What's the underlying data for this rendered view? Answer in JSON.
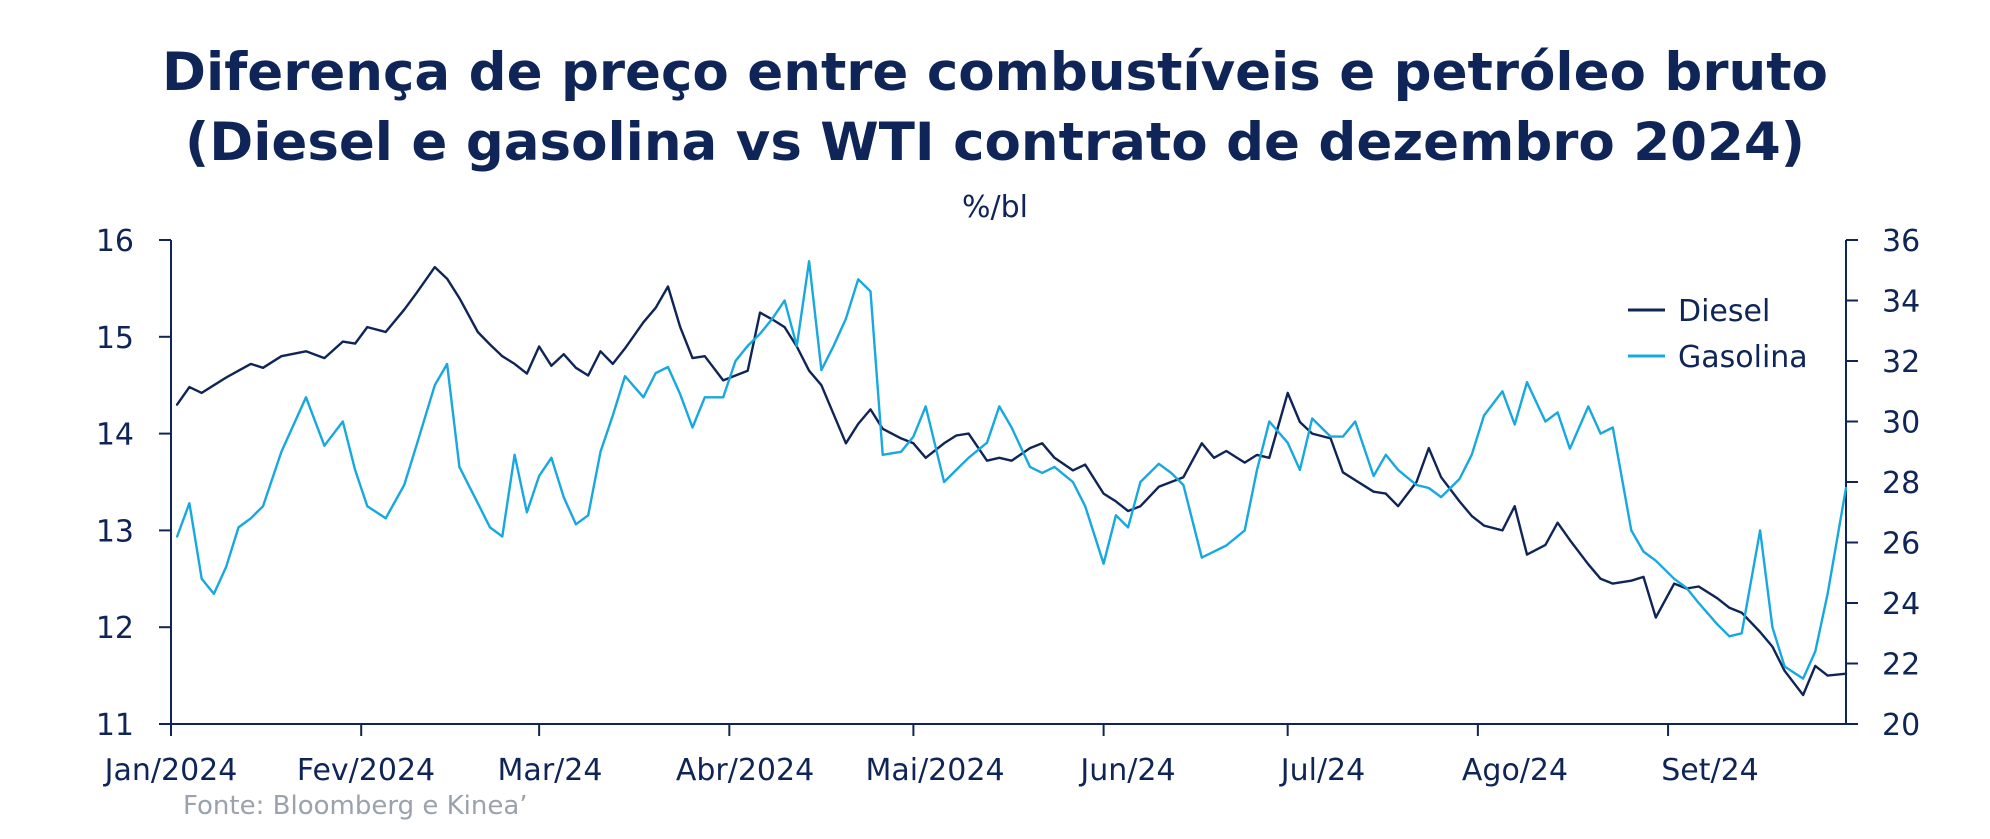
{
  "title_line1": "Diferença de preço entre combustíveis e petróleo bruto",
  "title_line2": "(Diesel e gasolina vs WTI contrato de dezembro 2024)",
  "unit": "%/bl",
  "source": "Fonte: Bloomberg e Kinea’",
  "chart_data": {
    "type": "line",
    "x_tick_labels": [
      "Jan/2024",
      "Fev/2024",
      "Mar/24",
      "Abr/2024",
      "Mai/2024",
      "Jun/24",
      "Jul/24",
      "Ago/24",
      "Set/24"
    ],
    "x_range": [
      "2024-01-01",
      "2024-09-30"
    ],
    "y_left": {
      "range": [
        11,
        16
      ],
      "ticks": [
        11,
        12,
        13,
        14,
        15,
        16
      ]
    },
    "y_right": {
      "range": [
        20,
        36
      ],
      "ticks": [
        20,
        22,
        24,
        26,
        28,
        30,
        32,
        34,
        36
      ]
    },
    "legend_position": "top-right",
    "grid": false,
    "series": [
      {
        "name": "Diesel",
        "axis": "left",
        "color": "#0f2557",
        "x": [
          "2024-01-02",
          "2024-01-04",
          "2024-01-06",
          "2024-01-08",
          "2024-01-10",
          "2024-01-12",
          "2024-01-14",
          "2024-01-16",
          "2024-01-19",
          "2024-01-23",
          "2024-01-26",
          "2024-01-29",
          "2024-01-31",
          "2024-02-02",
          "2024-02-05",
          "2024-02-08",
          "2024-02-10",
          "2024-02-13",
          "2024-02-15",
          "2024-02-17",
          "2024-02-20",
          "2024-02-22",
          "2024-02-24",
          "2024-02-26",
          "2024-02-28",
          "2024-03-01",
          "2024-03-03",
          "2024-03-05",
          "2024-03-07",
          "2024-03-09",
          "2024-03-11",
          "2024-03-13",
          "2024-03-15",
          "2024-03-18",
          "2024-03-20",
          "2024-03-22",
          "2024-03-24",
          "2024-03-26",
          "2024-03-28",
          "2024-03-31",
          "2024-04-02",
          "2024-04-04",
          "2024-04-06",
          "2024-04-08",
          "2024-04-10",
          "2024-04-12",
          "2024-04-14",
          "2024-04-16",
          "2024-04-18",
          "2024-04-20",
          "2024-04-22",
          "2024-04-24",
          "2024-04-26",
          "2024-04-29",
          "2024-05-01",
          "2024-05-03",
          "2024-05-06",
          "2024-05-08",
          "2024-05-10",
          "2024-05-13",
          "2024-05-15",
          "2024-05-17",
          "2024-05-20",
          "2024-05-22",
          "2024-05-24",
          "2024-05-27",
          "2024-05-29",
          "2024-06-01",
          "2024-06-03",
          "2024-06-05",
          "2024-06-07",
          "2024-06-10",
          "2024-06-12",
          "2024-06-14",
          "2024-06-17",
          "2024-06-19",
          "2024-06-21",
          "2024-06-24",
          "2024-06-26",
          "2024-06-28",
          "2024-07-01",
          "2024-07-03",
          "2024-07-05",
          "2024-07-08",
          "2024-07-10",
          "2024-07-12",
          "2024-07-15",
          "2024-07-17",
          "2024-07-19",
          "2024-07-22",
          "2024-07-24",
          "2024-07-26",
          "2024-07-29",
          "2024-07-31",
          "2024-08-02",
          "2024-08-05",
          "2024-08-07",
          "2024-08-09",
          "2024-08-12",
          "2024-08-14",
          "2024-08-16",
          "2024-08-19",
          "2024-08-21",
          "2024-08-23",
          "2024-08-26",
          "2024-08-28",
          "2024-08-30",
          "2024-09-02",
          "2024-09-04",
          "2024-09-06",
          "2024-09-09",
          "2024-09-11",
          "2024-09-13",
          "2024-09-16",
          "2024-09-18",
          "2024-09-20",
          "2024-09-23",
          "2024-09-25",
          "2024-09-27",
          "2024-09-30"
        ],
        "y": [
          14.3,
          14.48,
          14.42,
          14.5,
          14.58,
          14.65,
          14.72,
          14.68,
          14.8,
          14.85,
          14.78,
          14.95,
          14.93,
          15.1,
          15.05,
          15.28,
          15.45,
          15.72,
          15.6,
          15.4,
          15.05,
          14.92,
          14.8,
          14.72,
          14.62,
          14.9,
          14.7,
          14.82,
          14.68,
          14.6,
          14.85,
          14.72,
          14.88,
          15.15,
          15.3,
          15.52,
          15.1,
          14.78,
          14.8,
          14.55,
          14.6,
          14.65,
          15.25,
          15.18,
          15.1,
          14.9,
          14.65,
          14.5,
          14.2,
          13.9,
          14.1,
          14.25,
          14.05,
          13.95,
          13.9,
          13.75,
          13.9,
          13.98,
          14.0,
          13.72,
          13.75,
          13.72,
          13.85,
          13.9,
          13.75,
          13.62,
          13.68,
          13.38,
          13.3,
          13.2,
          13.25,
          13.45,
          13.5,
          13.55,
          13.9,
          13.75,
          13.82,
          13.7,
          13.78,
          13.75,
          14.42,
          14.12,
          14.0,
          13.95,
          13.6,
          13.52,
          13.4,
          13.38,
          13.25,
          13.5,
          13.85,
          13.55,
          13.3,
          13.15,
          13.05,
          13.0,
          13.25,
          12.75,
          12.85,
          13.08,
          12.9,
          12.65,
          12.5,
          12.45,
          12.48,
          12.52,
          12.1,
          12.45,
          12.4,
          12.42,
          12.3,
          12.2,
          12.15,
          11.95,
          11.8,
          11.55,
          11.3,
          11.6,
          11.5,
          11.52
        ]
      },
      {
        "name": "Gasolina",
        "axis": "right",
        "color": "#18a8e0",
        "x": [
          "2024-01-02",
          "2024-01-04",
          "2024-01-06",
          "2024-01-08",
          "2024-01-10",
          "2024-01-12",
          "2024-01-14",
          "2024-01-16",
          "2024-01-19",
          "2024-01-23",
          "2024-01-26",
          "2024-01-29",
          "2024-01-31",
          "2024-02-02",
          "2024-02-05",
          "2024-02-08",
          "2024-02-10",
          "2024-02-13",
          "2024-02-15",
          "2024-02-17",
          "2024-02-20",
          "2024-02-22",
          "2024-02-24",
          "2024-02-26",
          "2024-02-28",
          "2024-03-01",
          "2024-03-03",
          "2024-03-05",
          "2024-03-07",
          "2024-03-09",
          "2024-03-11",
          "2024-03-13",
          "2024-03-15",
          "2024-03-18",
          "2024-03-20",
          "2024-03-22",
          "2024-03-24",
          "2024-03-26",
          "2024-03-28",
          "2024-03-31",
          "2024-04-02",
          "2024-04-04",
          "2024-04-06",
          "2024-04-08",
          "2024-04-10",
          "2024-04-12",
          "2024-04-14",
          "2024-04-16",
          "2024-04-18",
          "2024-04-20",
          "2024-04-22",
          "2024-04-24",
          "2024-04-26",
          "2024-04-29",
          "2024-05-01",
          "2024-05-03",
          "2024-05-06",
          "2024-05-08",
          "2024-05-10",
          "2024-05-13",
          "2024-05-15",
          "2024-05-17",
          "2024-05-20",
          "2024-05-22",
          "2024-05-24",
          "2024-05-27",
          "2024-05-29",
          "2024-06-01",
          "2024-06-03",
          "2024-06-05",
          "2024-06-07",
          "2024-06-10",
          "2024-06-12",
          "2024-06-14",
          "2024-06-17",
          "2024-06-19",
          "2024-06-21",
          "2024-06-24",
          "2024-06-26",
          "2024-06-28",
          "2024-07-01",
          "2024-07-03",
          "2024-07-05",
          "2024-07-08",
          "2024-07-10",
          "2024-07-12",
          "2024-07-15",
          "2024-07-17",
          "2024-07-19",
          "2024-07-22",
          "2024-07-24",
          "2024-07-26",
          "2024-07-29",
          "2024-07-31",
          "2024-08-02",
          "2024-08-05",
          "2024-08-07",
          "2024-08-09",
          "2024-08-12",
          "2024-08-14",
          "2024-08-16",
          "2024-08-19",
          "2024-08-21",
          "2024-08-23",
          "2024-08-26",
          "2024-08-28",
          "2024-08-30",
          "2024-09-02",
          "2024-09-04",
          "2024-09-06",
          "2024-09-09",
          "2024-09-11",
          "2024-09-13",
          "2024-09-16",
          "2024-09-18",
          "2024-09-20",
          "2024-09-23",
          "2024-09-25",
          "2024-09-27",
          "2024-09-30"
        ],
        "y": [
          26.2,
          27.3,
          24.8,
          24.3,
          25.2,
          26.5,
          26.8,
          27.2,
          29.0,
          30.8,
          29.2,
          30.0,
          28.4,
          27.2,
          26.8,
          27.9,
          29.2,
          31.2,
          31.9,
          28.5,
          27.3,
          26.5,
          26.2,
          28.9,
          27.0,
          28.2,
          28.8,
          27.5,
          26.6,
          26.9,
          29.0,
          30.2,
          31.5,
          30.8,
          31.6,
          31.8,
          30.9,
          29.8,
          30.8,
          30.8,
          32.0,
          32.5,
          32.9,
          33.4,
          34.0,
          32.5,
          35.3,
          31.7,
          32.5,
          33.4,
          34.7,
          34.3,
          28.9,
          29.0,
          29.5,
          30.5,
          28.0,
          28.4,
          28.8,
          29.3,
          30.5,
          29.8,
          28.5,
          28.3,
          28.5,
          28.0,
          27.2,
          25.3,
          26.9,
          26.5,
          28.0,
          28.6,
          28.3,
          27.9,
          25.5,
          25.7,
          25.9,
          26.4,
          28.4,
          30.0,
          29.3,
          28.4,
          30.1,
          29.5,
          29.5,
          30.0,
          28.2,
          28.9,
          28.4,
          27.9,
          27.8,
          27.5,
          28.1,
          28.9,
          30.2,
          31.0,
          29.9,
          31.3,
          30.0,
          30.3,
          29.1,
          30.5,
          29.6,
          29.8,
          26.4,
          25.7,
          25.4,
          24.8,
          24.5,
          24.0,
          23.3,
          22.9,
          23.0,
          26.4,
          23.2,
          21.9,
          21.5,
          22.4,
          24.3,
          27.8
        ]
      }
    ]
  },
  "legend": {
    "diesel": "Diesel",
    "gasolina": "Gasolina"
  }
}
